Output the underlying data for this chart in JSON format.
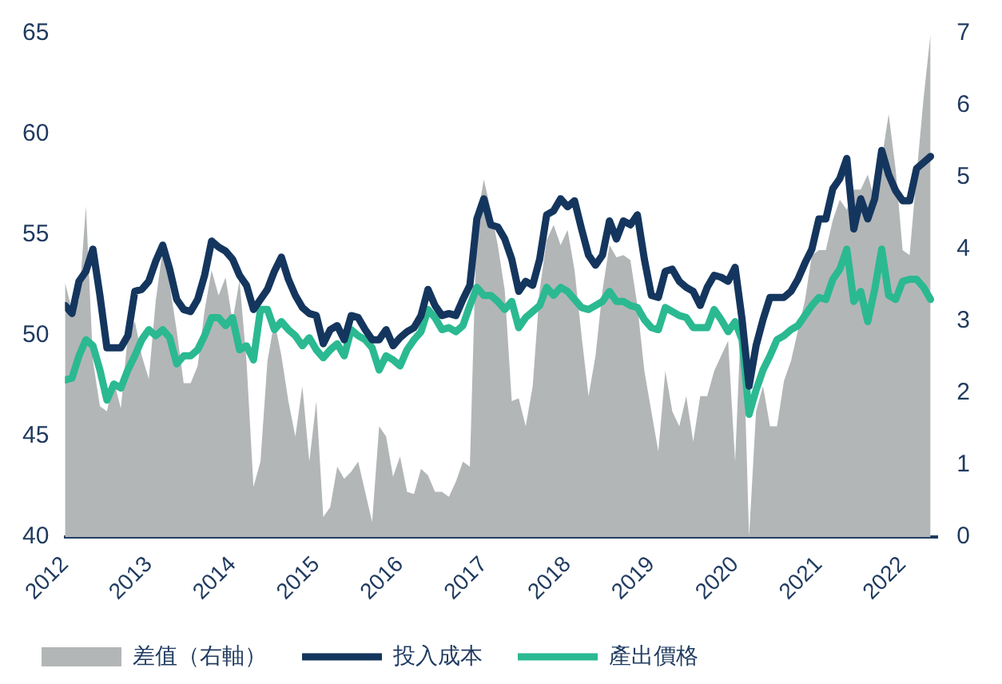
{
  "chart_data": {
    "type": "line",
    "legend": "bottom left",
    "grid": false,
    "marker": "none",
    "line_style": "solid",
    "x": [
      "2012-01",
      "2012-02",
      "2012-03",
      "2012-04",
      "2012-05",
      "2012-06",
      "2012-07",
      "2012-08",
      "2012-09",
      "2012-10",
      "2012-11",
      "2012-12",
      "2013-01",
      "2013-02",
      "2013-03",
      "2013-04",
      "2013-05",
      "2013-06",
      "2013-07",
      "2013-08",
      "2013-09",
      "2013-10",
      "2013-11",
      "2013-12",
      "2014-01",
      "2014-02",
      "2014-03",
      "2014-04",
      "2014-05",
      "2014-06",
      "2014-07",
      "2014-08",
      "2014-09",
      "2014-10",
      "2014-11",
      "2014-12",
      "2015-01",
      "2015-02",
      "2015-03",
      "2015-04",
      "2015-05",
      "2015-06",
      "2015-07",
      "2015-08",
      "2015-09",
      "2015-10",
      "2015-11",
      "2015-12",
      "2016-01",
      "2016-02",
      "2016-03",
      "2016-04",
      "2016-05",
      "2016-06",
      "2016-07",
      "2016-08",
      "2016-09",
      "2016-10",
      "2016-11",
      "2016-12",
      "2017-01",
      "2017-02",
      "2017-03",
      "2017-04",
      "2017-05",
      "2017-06",
      "2017-07",
      "2017-08",
      "2017-09",
      "2017-10",
      "2017-11",
      "2017-12",
      "2018-01",
      "2018-02",
      "2018-03",
      "2018-04",
      "2018-05",
      "2018-06",
      "2018-07",
      "2018-08",
      "2018-09",
      "2018-10",
      "2018-11",
      "2018-12",
      "2019-01",
      "2019-02",
      "2019-03",
      "2019-04",
      "2019-05",
      "2019-06",
      "2019-07",
      "2019-08",
      "2019-09",
      "2019-10",
      "2019-11",
      "2019-12",
      "2020-01",
      "2020-02",
      "2020-03",
      "2020-04",
      "2020-05",
      "2020-06",
      "2020-07",
      "2020-08",
      "2020-09",
      "2020-10",
      "2020-11",
      "2020-12",
      "2021-01",
      "2021-02",
      "2021-03",
      "2021-04",
      "2021-05",
      "2021-06",
      "2021-07",
      "2021-08",
      "2021-09",
      "2021-10",
      "2021-11",
      "2021-12",
      "2022-01",
      "2022-02",
      "2022-03",
      "2022-04",
      "2022-05"
    ],
    "xlim": [
      "2012-01",
      "2022-06"
    ],
    "xticks": [
      "2012",
      "2013",
      "2014",
      "2015",
      "2016",
      "2017",
      "2018",
      "2019",
      "2020",
      "2021",
      "2022"
    ],
    "ylim": [
      40,
      65
    ],
    "yticks": [
      40,
      45,
      50,
      55,
      60,
      65
    ],
    "y2lim": [
      0,
      7
    ],
    "y2ticks": [
      0,
      1,
      2,
      3,
      4,
      5,
      6,
      7
    ],
    "series": [
      {
        "name": "差值（右軸）",
        "type": "area",
        "axis": "y2",
        "color": "#b3b6b7",
        "values": [
          3.54,
          3.15,
          3.29,
          4.6,
          2.45,
          1.82,
          1.75,
          2.17,
          1.79,
          2.8,
          3.0,
          2.52,
          2.2,
          3.29,
          4.0,
          3.5,
          2.87,
          2.14,
          2.14,
          2.38,
          3.15,
          3.71,
          3.36,
          3.61,
          3.0,
          3.57,
          2.45,
          0.7,
          1.05,
          2.45,
          3.0,
          2.52,
          1.89,
          1.4,
          2.1,
          1.05,
          1.89,
          0.28,
          0.42,
          0.98,
          0.81,
          0.91,
          1.05,
          0.63,
          0.21,
          1.54,
          1.4,
          0.84,
          1.12,
          0.63,
          0.6,
          0.95,
          0.86,
          0.63,
          0.63,
          0.56,
          0.77,
          1.05,
          0.98,
          4.41,
          4.97,
          4.55,
          4.06,
          3.43,
          1.89,
          1.93,
          1.54,
          2.1,
          3.43,
          4.13,
          4.34,
          4.06,
          4.27,
          3.71,
          2.8,
          1.96,
          2.52,
          3.43,
          4.06,
          3.89,
          3.92,
          3.85,
          3.22,
          2.31,
          1.75,
          1.19,
          2.31,
          1.75,
          1.54,
          1.96,
          1.33,
          1.96,
          1.96,
          2.31,
          2.52,
          2.73,
          1.05,
          3.36,
          0,
          1.75,
          2.1,
          1.54,
          1.54,
          2.17,
          2.45,
          2.87,
          3.29,
          3.92,
          3.99,
          3.99,
          4.41,
          4.69,
          4.55,
          4.83,
          4.83,
          5.04,
          4.69,
          5.25,
          5.88,
          5.11,
          3.99,
          3.92,
          5.04,
          6.1,
          7.0
        ]
      },
      {
        "name": "投入成本",
        "type": "line",
        "color": "#14365e",
        "values": [
          51.5,
          51.1,
          52.7,
          53.2,
          54.3,
          52.0,
          49.4,
          49.4,
          49.4,
          50.0,
          52.2,
          52.3,
          52.7,
          53.7,
          54.5,
          53.3,
          51.8,
          51.3,
          51.2,
          51.8,
          53.0,
          54.7,
          54.4,
          54.2,
          53.8,
          53.0,
          52.5,
          51.3,
          51.8,
          52.3,
          53.2,
          53.9,
          52.8,
          52.0,
          51.4,
          51.1,
          51.0,
          49.6,
          50.3,
          50.5,
          49.8,
          51.0,
          50.9,
          50.3,
          49.8,
          49.8,
          50.3,
          49.5,
          49.9,
          50.2,
          50.4,
          51.0,
          52.3,
          51.5,
          51.0,
          51.1,
          51.0,
          51.8,
          52.5,
          55.8,
          56.8,
          55.5,
          55.4,
          54.8,
          53.8,
          52.2,
          52.7,
          52.5,
          53.8,
          56.0,
          56.2,
          56.8,
          56.4,
          56.7,
          55.3,
          54.0,
          53.5,
          54.0,
          55.7,
          54.8,
          55.7,
          55.5,
          56.0,
          53.8,
          52.0,
          51.9,
          53.2,
          53.3,
          52.7,
          52.4,
          52.2,
          51.5,
          52.4,
          53.0,
          52.9,
          52.7,
          53.4,
          50.8,
          47.5,
          49.5,
          50.8,
          51.9,
          51.9,
          51.9,
          52.2,
          52.8,
          53.6,
          54.3,
          55.8,
          55.8,
          57.3,
          57.8,
          58.8,
          55.3,
          56.8,
          55.8,
          56.8,
          59.2,
          58.0,
          57.2,
          56.7,
          56.7,
          58.3,
          58.6,
          58.9
        ]
      },
      {
        "name": "產出價格",
        "type": "line",
        "color": "#2bb991",
        "values": [
          47.8,
          47.9,
          49.0,
          49.8,
          49.5,
          48.3,
          46.8,
          47.6,
          47.4,
          48.3,
          49.0,
          49.8,
          50.3,
          50.0,
          50.3,
          49.9,
          48.6,
          49.0,
          49.0,
          49.3,
          50.0,
          50.9,
          50.9,
          50.5,
          50.9,
          49.3,
          49.5,
          48.8,
          51.3,
          51.3,
          50.3,
          50.7,
          50.3,
          50.0,
          49.5,
          49.9,
          49.3,
          48.9,
          49.3,
          49.6,
          49.0,
          50.3,
          50.0,
          49.8,
          49.4,
          48.3,
          49.0,
          48.8,
          48.5,
          49.3,
          49.8,
          50.2,
          51.3,
          50.9,
          50.3,
          50.4,
          50.2,
          50.5,
          51.5,
          52.4,
          52.0,
          52.0,
          51.7,
          51.3,
          51.7,
          50.4,
          50.9,
          51.2,
          51.5,
          52.4,
          52.0,
          52.4,
          52.2,
          51.8,
          51.4,
          51.3,
          51.5,
          51.7,
          52.2,
          51.7,
          51.7,
          51.5,
          51.4,
          50.8,
          50.4,
          50.3,
          51.4,
          51.2,
          51.0,
          50.9,
          50.4,
          50.4,
          50.4,
          51.3,
          50.8,
          50.2,
          50.7,
          49.8,
          46.1,
          47.3,
          48.3,
          49.0,
          49.8,
          50.0,
          50.3,
          50.5,
          51.0,
          51.5,
          51.9,
          51.8,
          52.8,
          53.3,
          54.3,
          51.7,
          52.2,
          50.7,
          52.3,
          54.3,
          52.0,
          51.8,
          52.7,
          52.8,
          52.8,
          52.4,
          51.8
        ]
      }
    ]
  }
}
